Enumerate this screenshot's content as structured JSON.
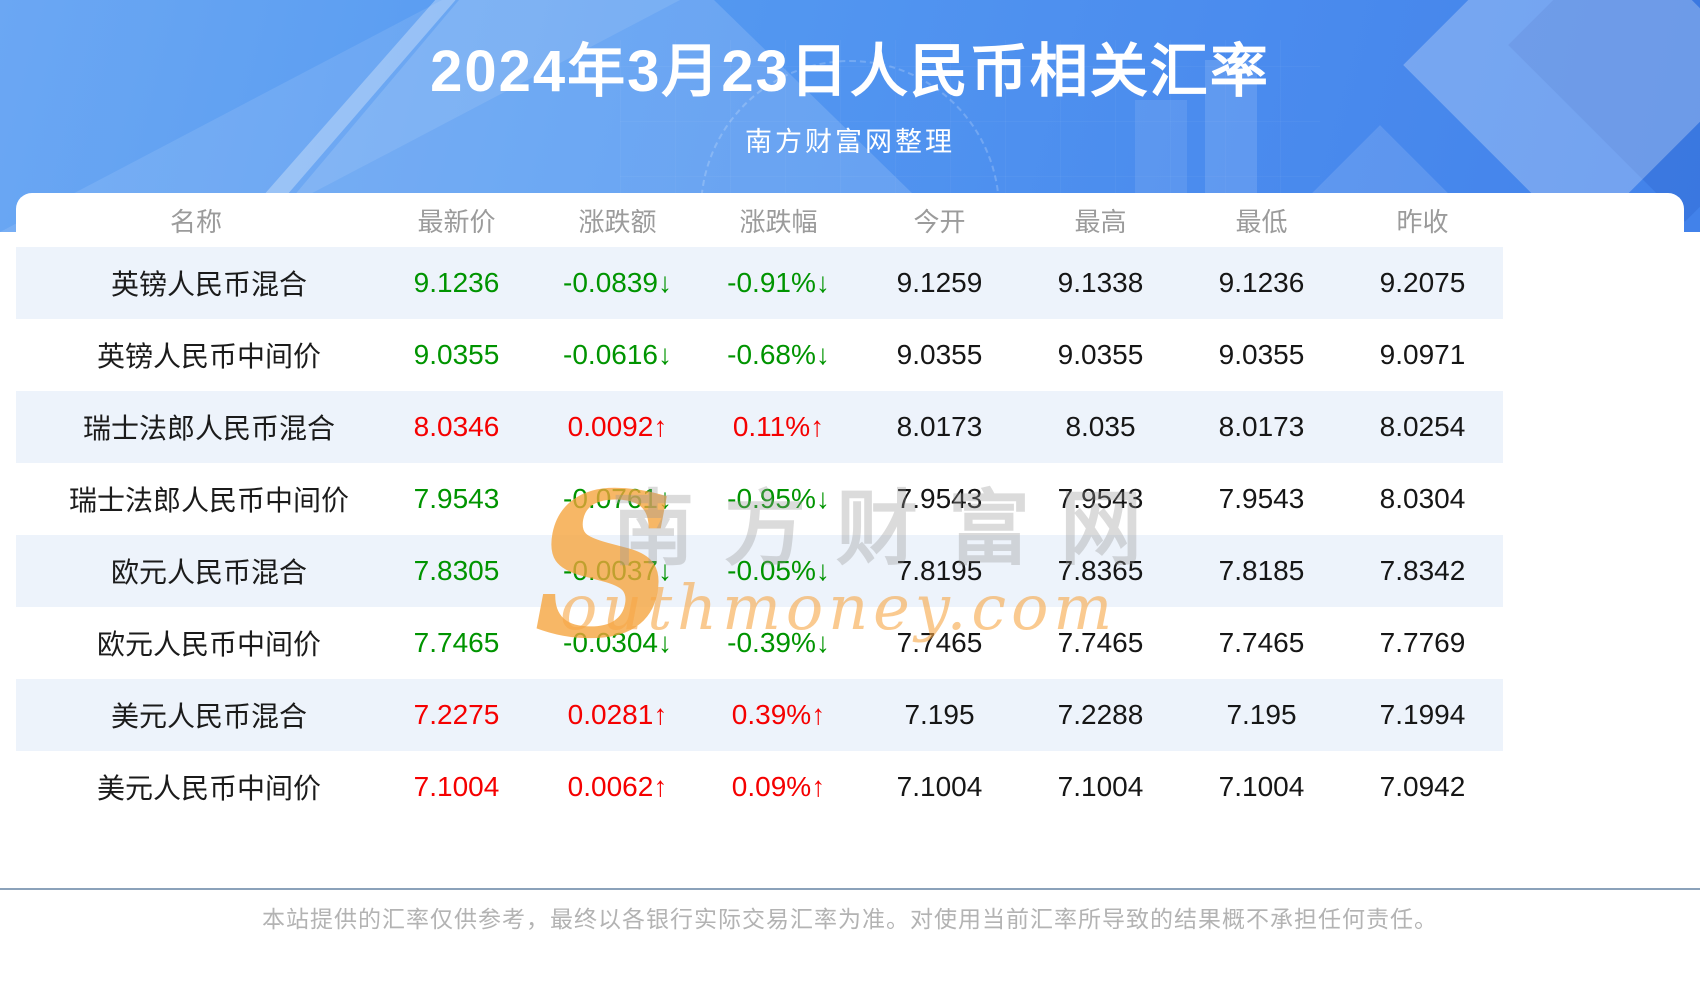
{
  "page": {
    "title": "2024年3月23日人民币相关汇率",
    "subtitle": "南方财富网整理"
  },
  "watermark": {
    "swoosh": "S",
    "cn": "南方财富网",
    "en": "outhmoney.com"
  },
  "footer": {
    "disclaimer": "本站提供的汇率仅供参考，最终以各银行实际交易汇率为准。对使用当前汇率所导致的结果概不承担任何责任。"
  },
  "colors": {
    "up_red": "#f50000",
    "down_green": "#009400",
    "stripe_blue": "#edf3fb",
    "header_gray": "#9b9b9b",
    "divider_blue_gray": "#8ba2ba",
    "banner_blue": "#4b8cee",
    "watermark_orange": "#f6a43c"
  },
  "chart_data": {
    "type": "table",
    "title": "2024年3月23日人民币相关汇率",
    "subtitle": "南方财富网整理",
    "columns": [
      "名称",
      "最新价",
      "涨跌额",
      "涨跌幅",
      "今开",
      "最高",
      "最低",
      "昨收"
    ],
    "rows": [
      {
        "name": "英镑人民币混合",
        "latest": "9.1236",
        "change": "-0.0839↓",
        "change_pct": "-0.91%↓",
        "open": "9.1259",
        "high": "9.1338",
        "low": "9.1236",
        "prev_close": "9.2075",
        "trend": "down"
      },
      {
        "name": "英镑人民币中间价",
        "latest": "9.0355",
        "change": "-0.0616↓",
        "change_pct": "-0.68%↓",
        "open": "9.0355",
        "high": "9.0355",
        "low": "9.0355",
        "prev_close": "9.0971",
        "trend": "down"
      },
      {
        "name": "瑞士法郎人民币混合",
        "latest": "8.0346",
        "change": "0.0092↑",
        "change_pct": "0.11%↑",
        "open": "8.0173",
        "high": "8.035",
        "low": "8.0173",
        "prev_close": "8.0254",
        "trend": "up"
      },
      {
        "name": "瑞士法郎人民币中间价",
        "latest": "7.9543",
        "change": "-0.0761↓",
        "change_pct": "-0.95%↓",
        "open": "7.9543",
        "high": "7.9543",
        "low": "7.9543",
        "prev_close": "8.0304",
        "trend": "down"
      },
      {
        "name": "欧元人民币混合",
        "latest": "7.8305",
        "change": "-0.0037↓",
        "change_pct": "-0.05%↓",
        "open": "7.8195",
        "high": "7.8365",
        "low": "7.8185",
        "prev_close": "7.8342",
        "trend": "down"
      },
      {
        "name": "欧元人民币中间价",
        "latest": "7.7465",
        "change": "-0.0304↓",
        "change_pct": "-0.39%↓",
        "open": "7.7465",
        "high": "7.7465",
        "low": "7.7465",
        "prev_close": "7.7769",
        "trend": "down"
      },
      {
        "name": "美元人民币混合",
        "latest": "7.2275",
        "change": "0.0281↑",
        "change_pct": "0.39%↑",
        "open": "7.195",
        "high": "7.2288",
        "low": "7.195",
        "prev_close": "7.1994",
        "trend": "up"
      },
      {
        "name": "美元人民币中间价",
        "latest": "7.1004",
        "change": "0.0062↑",
        "change_pct": "0.09%↑",
        "open": "7.1004",
        "high": "7.1004",
        "low": "7.1004",
        "prev_close": "7.0942",
        "trend": "up"
      }
    ]
  }
}
